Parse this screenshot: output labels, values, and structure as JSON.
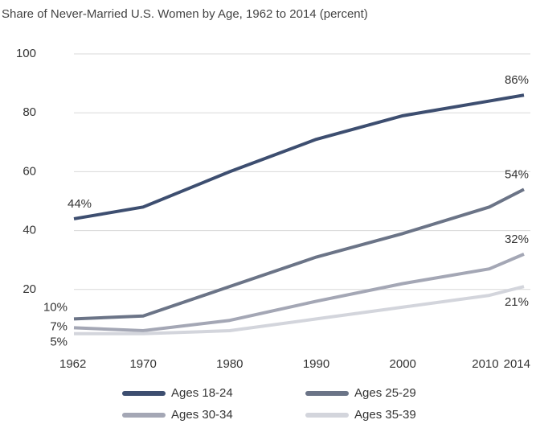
{
  "chart_data": {
    "type": "line",
    "title": "Share of Never-Married U.S. Women by Age, 1962 to 2014 (percent)",
    "x": [
      1962,
      1970,
      1980,
      1990,
      2000,
      2010,
      2014
    ],
    "xlim": [
      1962,
      2014
    ],
    "xticks": [
      1962,
      1970,
      1980,
      1990,
      2000,
      2010,
      2014
    ],
    "ylim": [
      0,
      100
    ],
    "yticks": [
      20,
      40,
      60,
      80,
      100
    ],
    "grid": true,
    "series": [
      {
        "name": "Ages 18-24",
        "color": "#3d4e70",
        "values": [
          44,
          48,
          60,
          71,
          79,
          84,
          86
        ],
        "value_labels": [
          "44%",
          null,
          null,
          null,
          null,
          null,
          "86%"
        ]
      },
      {
        "name": "Ages 25-29",
        "color": "#6b7487",
        "values": [
          10,
          11,
          21,
          31,
          39,
          48,
          54
        ],
        "value_labels": [
          "10%",
          null,
          null,
          null,
          null,
          null,
          "54%"
        ]
      },
      {
        "name": "Ages 30-34",
        "color": "#a4a7b5",
        "values": [
          7,
          6,
          9.5,
          16,
          22,
          27,
          32
        ],
        "value_labels": [
          "7%",
          null,
          null,
          null,
          null,
          null,
          "32%"
        ]
      },
      {
        "name": "Ages 35-39",
        "color": "#d3d5dc",
        "values": [
          5,
          5,
          6,
          10,
          14,
          18,
          21
        ],
        "value_labels": [
          "5%",
          null,
          null,
          null,
          null,
          null,
          "21%"
        ]
      }
    ]
  }
}
